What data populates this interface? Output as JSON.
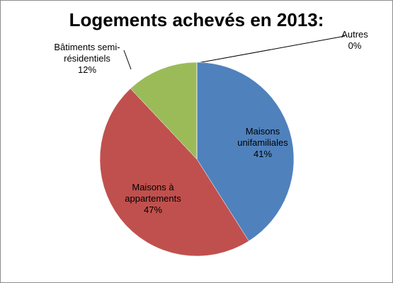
{
  "chart_data": {
    "type": "pie",
    "title": "Logements achevés en 2013:",
    "categories": [
      "Maisons unifamiliales",
      "Maisons à appartements",
      "Bâtiments semi-résidentiels",
      "Autres"
    ],
    "values": [
      41,
      47,
      12,
      0
    ],
    "value_labels": [
      "41%",
      "47%",
      "12%",
      "0%"
    ],
    "colors": [
      "#4f81bd",
      "#c0504d",
      "#9bbb59",
      "#8064a2"
    ]
  }
}
